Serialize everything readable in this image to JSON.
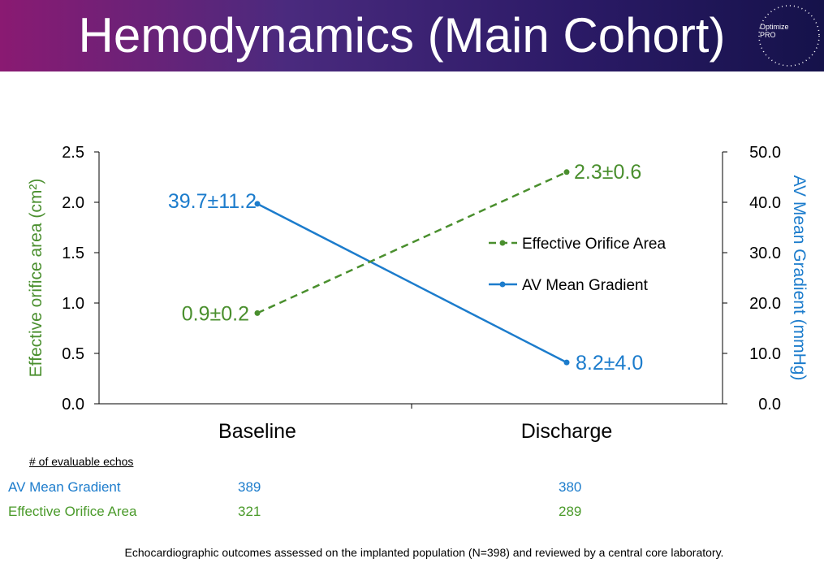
{
  "header": {
    "title": "Hemodynamics (Main Cohort)",
    "logo_line1": "Optimize",
    "logo_line2": "PRO"
  },
  "colors": {
    "eoa": "#4a8f2e",
    "gradient": "#1c7ccc",
    "axis": "#000000"
  },
  "chart_data": {
    "type": "line",
    "categories": [
      "Baseline",
      "Discharge"
    ],
    "series": [
      {
        "name": "Effective Orifice Area",
        "axis": "left",
        "style": "dashed",
        "values": [
          0.9,
          2.3
        ],
        "labels": [
          "0.9±0.2",
          "2.3±0.6"
        ]
      },
      {
        "name": "AV Mean Gradient",
        "axis": "right",
        "style": "solid",
        "values": [
          39.7,
          8.2
        ],
        "labels": [
          "39.7±11.2",
          "8.2±4.0"
        ]
      }
    ],
    "ylabel": "Effective orifice area (cm²)",
    "y2label": "AV Mean Gradient (mmHg)",
    "ylim": [
      0,
      2.5
    ],
    "y2lim": [
      0,
      50
    ],
    "yticks": [
      "0.0",
      "0.5",
      "1.0",
      "1.5",
      "2.0",
      "2.5"
    ],
    "y2ticks": [
      "0.0",
      "10.0",
      "20.0",
      "30.0",
      "40.0",
      "50.0"
    ],
    "legend_position": "center-right",
    "grid": false
  },
  "table": {
    "header": "# of evaluable echos",
    "rows": [
      {
        "label": "AV Mean Gradient",
        "values": [
          "389",
          "380"
        ]
      },
      {
        "label": "Effective Orifice Area",
        "values": [
          "321",
          "289"
        ]
      }
    ]
  },
  "footnote": "Echocardiographic outcomes assessed on the implanted population (N=398) and reviewed by a central core laboratory."
}
